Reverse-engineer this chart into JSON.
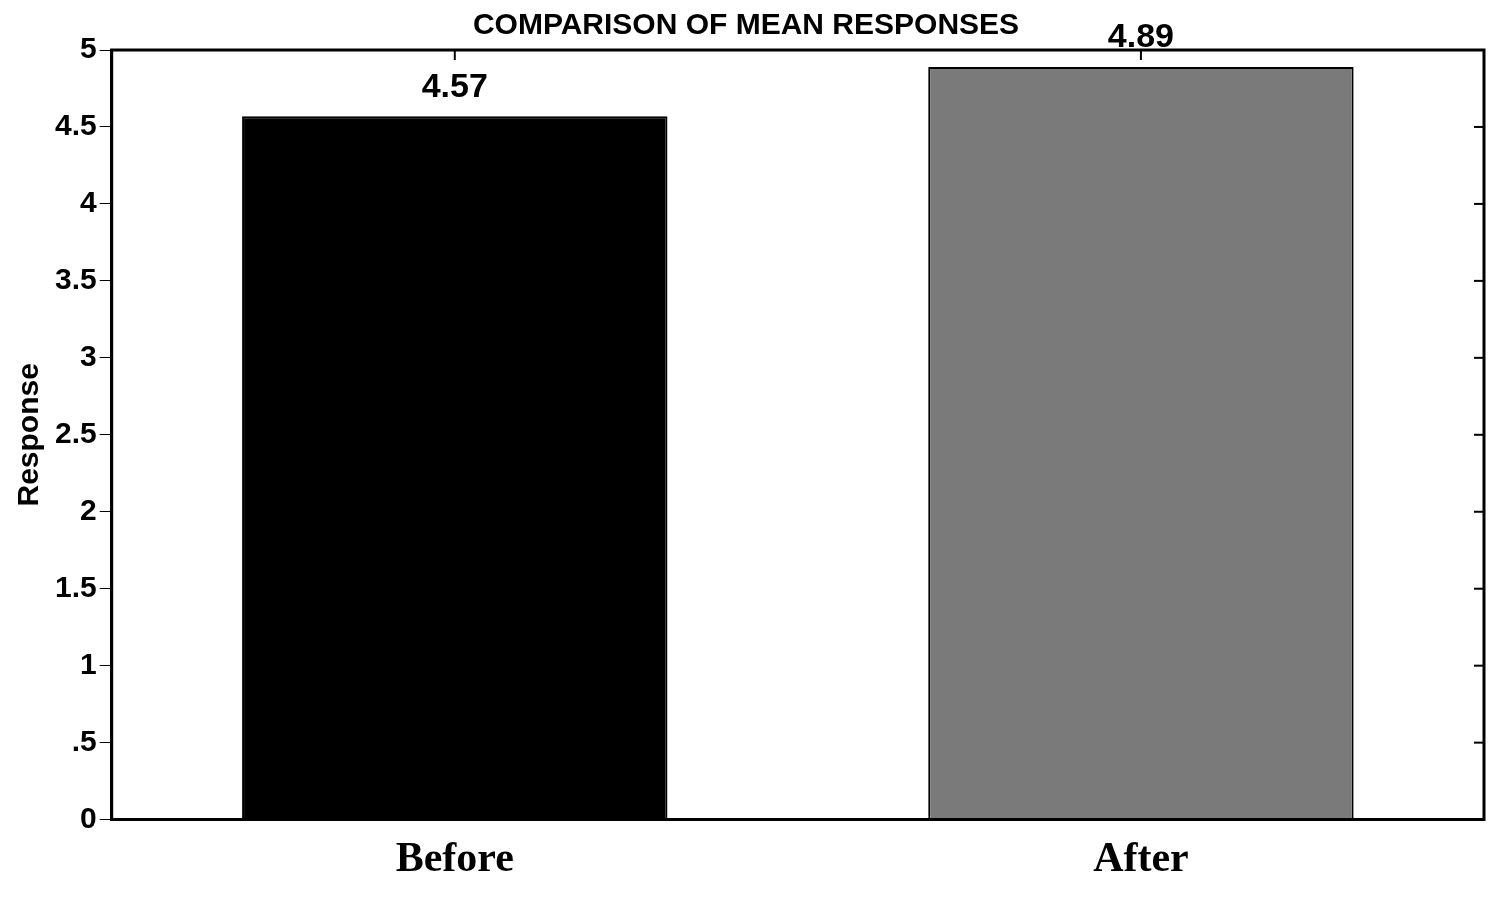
{
  "chart_data": {
    "type": "bar",
    "title": "COMPARISON OF MEAN RESPONSES",
    "ylabel": "Response",
    "categories": [
      "Before",
      "After"
    ],
    "values": [
      4.57,
      4.89
    ],
    "colors": [
      "#000000",
      "#7a7a7a"
    ],
    "ylim": [
      0,
      5
    ],
    "yticks": [
      0,
      {
        "value": 0.5,
        "label": ".5"
      },
      1,
      1.5,
      2,
      2.5,
      3,
      3.5,
      4,
      4.5,
      5
    ],
    "data_labels": true,
    "grid": false,
    "legend": false
  }
}
